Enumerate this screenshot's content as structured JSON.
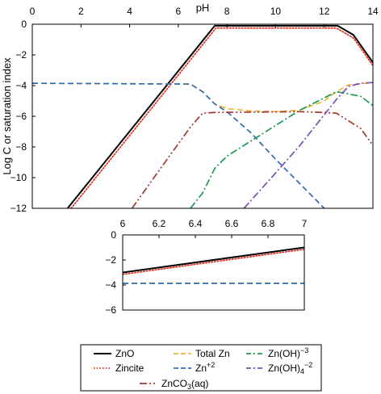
{
  "chart_data": [
    {
      "type": "line",
      "xlabel": "pH",
      "ylabel": "Log C or saturation index",
      "xlim": [
        0,
        14
      ],
      "ylim": [
        -12,
        0
      ],
      "xticks": [
        "0",
        "2",
        "4",
        "6",
        "8",
        "10",
        "12",
        "14"
      ],
      "yticks": [
        "0",
        "−2",
        "−4",
        "−6",
        "−8",
        "−10",
        "−12"
      ],
      "grid": false,
      "series": [
        {
          "name": "ZnO",
          "color": "#000000",
          "dash": "solid",
          "points": [
            [
              1.45,
              -12
            ],
            [
              7.5,
              -0.1
            ],
            [
              12.55,
              -0.1
            ],
            [
              13.2,
              -0.7
            ],
            [
              14,
              -2.5
            ]
          ]
        },
        {
          "name": "Zincite",
          "color": "#e0301e",
          "dash": "dotted",
          "points": [
            [
              1.6,
              -12
            ],
            [
              7.55,
              -0.25
            ],
            [
              12.5,
              -0.25
            ],
            [
              13.2,
              -0.9
            ],
            [
              14,
              -2.7
            ]
          ]
        },
        {
          "name": "Total Zn",
          "color": "#f5b335",
          "dash": "dashed",
          "points": [
            [
              0,
              -3.85
            ],
            [
              6.5,
              -3.9
            ],
            [
              7.0,
              -4.4
            ],
            [
              7.5,
              -5.2
            ],
            [
              8.0,
              -5.5
            ],
            [
              9.0,
              -5.65
            ],
            [
              10.0,
              -5.7
            ],
            [
              11.0,
              -5.6
            ],
            [
              12.0,
              -5.0
            ],
            [
              12.5,
              -4.4
            ],
            [
              13.0,
              -3.95
            ],
            [
              14,
              -3.8
            ]
          ]
        },
        {
          "name": "Zn+2",
          "color": "#2e6db5",
          "dash": "dashed",
          "points": [
            [
              0,
              -3.85
            ],
            [
              6.5,
              -3.9
            ],
            [
              7.0,
              -4.4
            ],
            [
              7.5,
              -5.2
            ],
            [
              8.0,
              -5.7
            ],
            [
              9.0,
              -7.1
            ],
            [
              10.0,
              -8.8
            ],
            [
              11.0,
              -10.4
            ],
            [
              12.0,
              -12
            ]
          ]
        },
        {
          "name": "Zn(OH)−3",
          "color": "#1f9a52",
          "dash": "dashdot",
          "points": [
            [
              6.5,
              -12
            ],
            [
              7.0,
              -11.0
            ],
            [
              7.5,
              -9.4
            ],
            [
              8.0,
              -8.6
            ],
            [
              9.0,
              -7.6
            ],
            [
              10.0,
              -6.6
            ],
            [
              11.0,
              -5.6
            ],
            [
              12.0,
              -4.8
            ],
            [
              12.5,
              -4.4
            ],
            [
              13.0,
              -4.55
            ],
            [
              13.5,
              -4.7
            ],
            [
              14,
              -5.3
            ]
          ]
        },
        {
          "name": "Zn(OH)4−2",
          "color": "#7a4fb5",
          "dash": "dashdot",
          "points": [
            [
              8.7,
              -12
            ],
            [
              10.0,
              -9.7
            ],
            [
              11.0,
              -7.9
            ],
            [
              12.0,
              -5.9
            ],
            [
              12.5,
              -4.9
            ],
            [
              13.0,
              -4.05
            ],
            [
              13.5,
              -3.85
            ],
            [
              14,
              -3.8
            ]
          ]
        },
        {
          "name": "ZnCO3(aq)",
          "color": "#a03a32",
          "dash": "dashdotdot",
          "points": [
            [
              4.1,
              -12
            ],
            [
              5.0,
              -10.0
            ],
            [
              6.0,
              -7.8
            ],
            [
              6.5,
              -6.7
            ],
            [
              7.0,
              -5.8
            ],
            [
              7.5,
              -5.75
            ],
            [
              11.0,
              -5.7
            ],
            [
              12.0,
              -5.75
            ],
            [
              12.5,
              -5.8
            ],
            [
              13.0,
              -6.3
            ],
            [
              13.5,
              -6.8
            ],
            [
              14,
              -7.9
            ]
          ]
        }
      ]
    },
    {
      "type": "line",
      "xlim": [
        6,
        7
      ],
      "ylim": [
        -6,
        0
      ],
      "xticks": [
        "6",
        "6.2",
        "6.4",
        "6.6",
        "6.8",
        "7"
      ],
      "yticks": [
        "0",
        "−2",
        "−4",
        "−6"
      ],
      "grid": false,
      "series": [
        {
          "name": "ZnO",
          "color": "#000000",
          "dash": "solid",
          "points": [
            [
              6,
              -3.0
            ],
            [
              7,
              -1.0
            ]
          ]
        },
        {
          "name": "Zincite",
          "color": "#e0301e",
          "dash": "dotted",
          "points": [
            [
              6,
              -3.15
            ],
            [
              7,
              -1.15
            ]
          ]
        },
        {
          "name": "Total Zn",
          "color": "#f5b335",
          "dash": "dashed",
          "points": [
            [
              6,
              -3.85
            ],
            [
              7,
              -3.85
            ]
          ]
        },
        {
          "name": "Zn+2",
          "color": "#2e6db5",
          "dash": "dashed",
          "points": [
            [
              6,
              -3.87
            ],
            [
              7,
              -3.87
            ]
          ]
        }
      ]
    }
  ],
  "legend": {
    "placement": "bottom",
    "entries": [
      {
        "label": "ZnO",
        "color": "#000000",
        "dash": "solid"
      },
      {
        "label": "Total Zn",
        "color": "#f5b335",
        "dash": "dashed"
      },
      {
        "label": "Zn(OH)",
        "sub_sup": "−3",
        "color": "#1f9a52",
        "dash": "dashdot"
      },
      {
        "label": "Zincite",
        "color": "#e0301e",
        "dash": "dotted"
      },
      {
        "label": "Zn",
        "sup": "+2",
        "color": "#2e6db5",
        "dash": "dashed"
      },
      {
        "label": "Zn(OH)",
        "sub": "4",
        "sup": "−2",
        "color": "#7a4fb5",
        "dash": "dashdot"
      },
      {
        "label": "ZnCO",
        "sub": "3",
        "suffix": "(aq)",
        "color": "#a03a32",
        "dash": "dashdotdot"
      }
    ]
  }
}
